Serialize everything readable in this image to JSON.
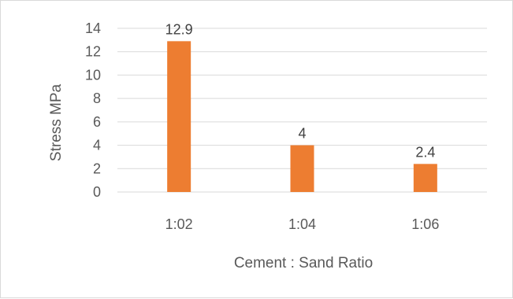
{
  "chart_data": {
    "type": "bar",
    "categories": [
      "1:02",
      "1:04",
      "1:06"
    ],
    "values": [
      12.9,
      4,
      2.4
    ],
    "data_labels": [
      "12.9",
      "4",
      "2.4"
    ],
    "title": "",
    "xlabel": "Cement : Sand Ratio",
    "ylabel": "Stress MPa",
    "ylim": [
      0,
      14
    ],
    "yticks": [
      0,
      2,
      4,
      6,
      8,
      10,
      12,
      14
    ],
    "ytick_labels": [
      "0",
      "2",
      "4",
      "6",
      "8",
      "10",
      "12",
      "14"
    ],
    "grid": true,
    "legend": false,
    "colors": {
      "bar": "#ED7D31",
      "grid": "#d9d9d9",
      "axis": "#d9d9d9",
      "text": "#595959"
    }
  }
}
